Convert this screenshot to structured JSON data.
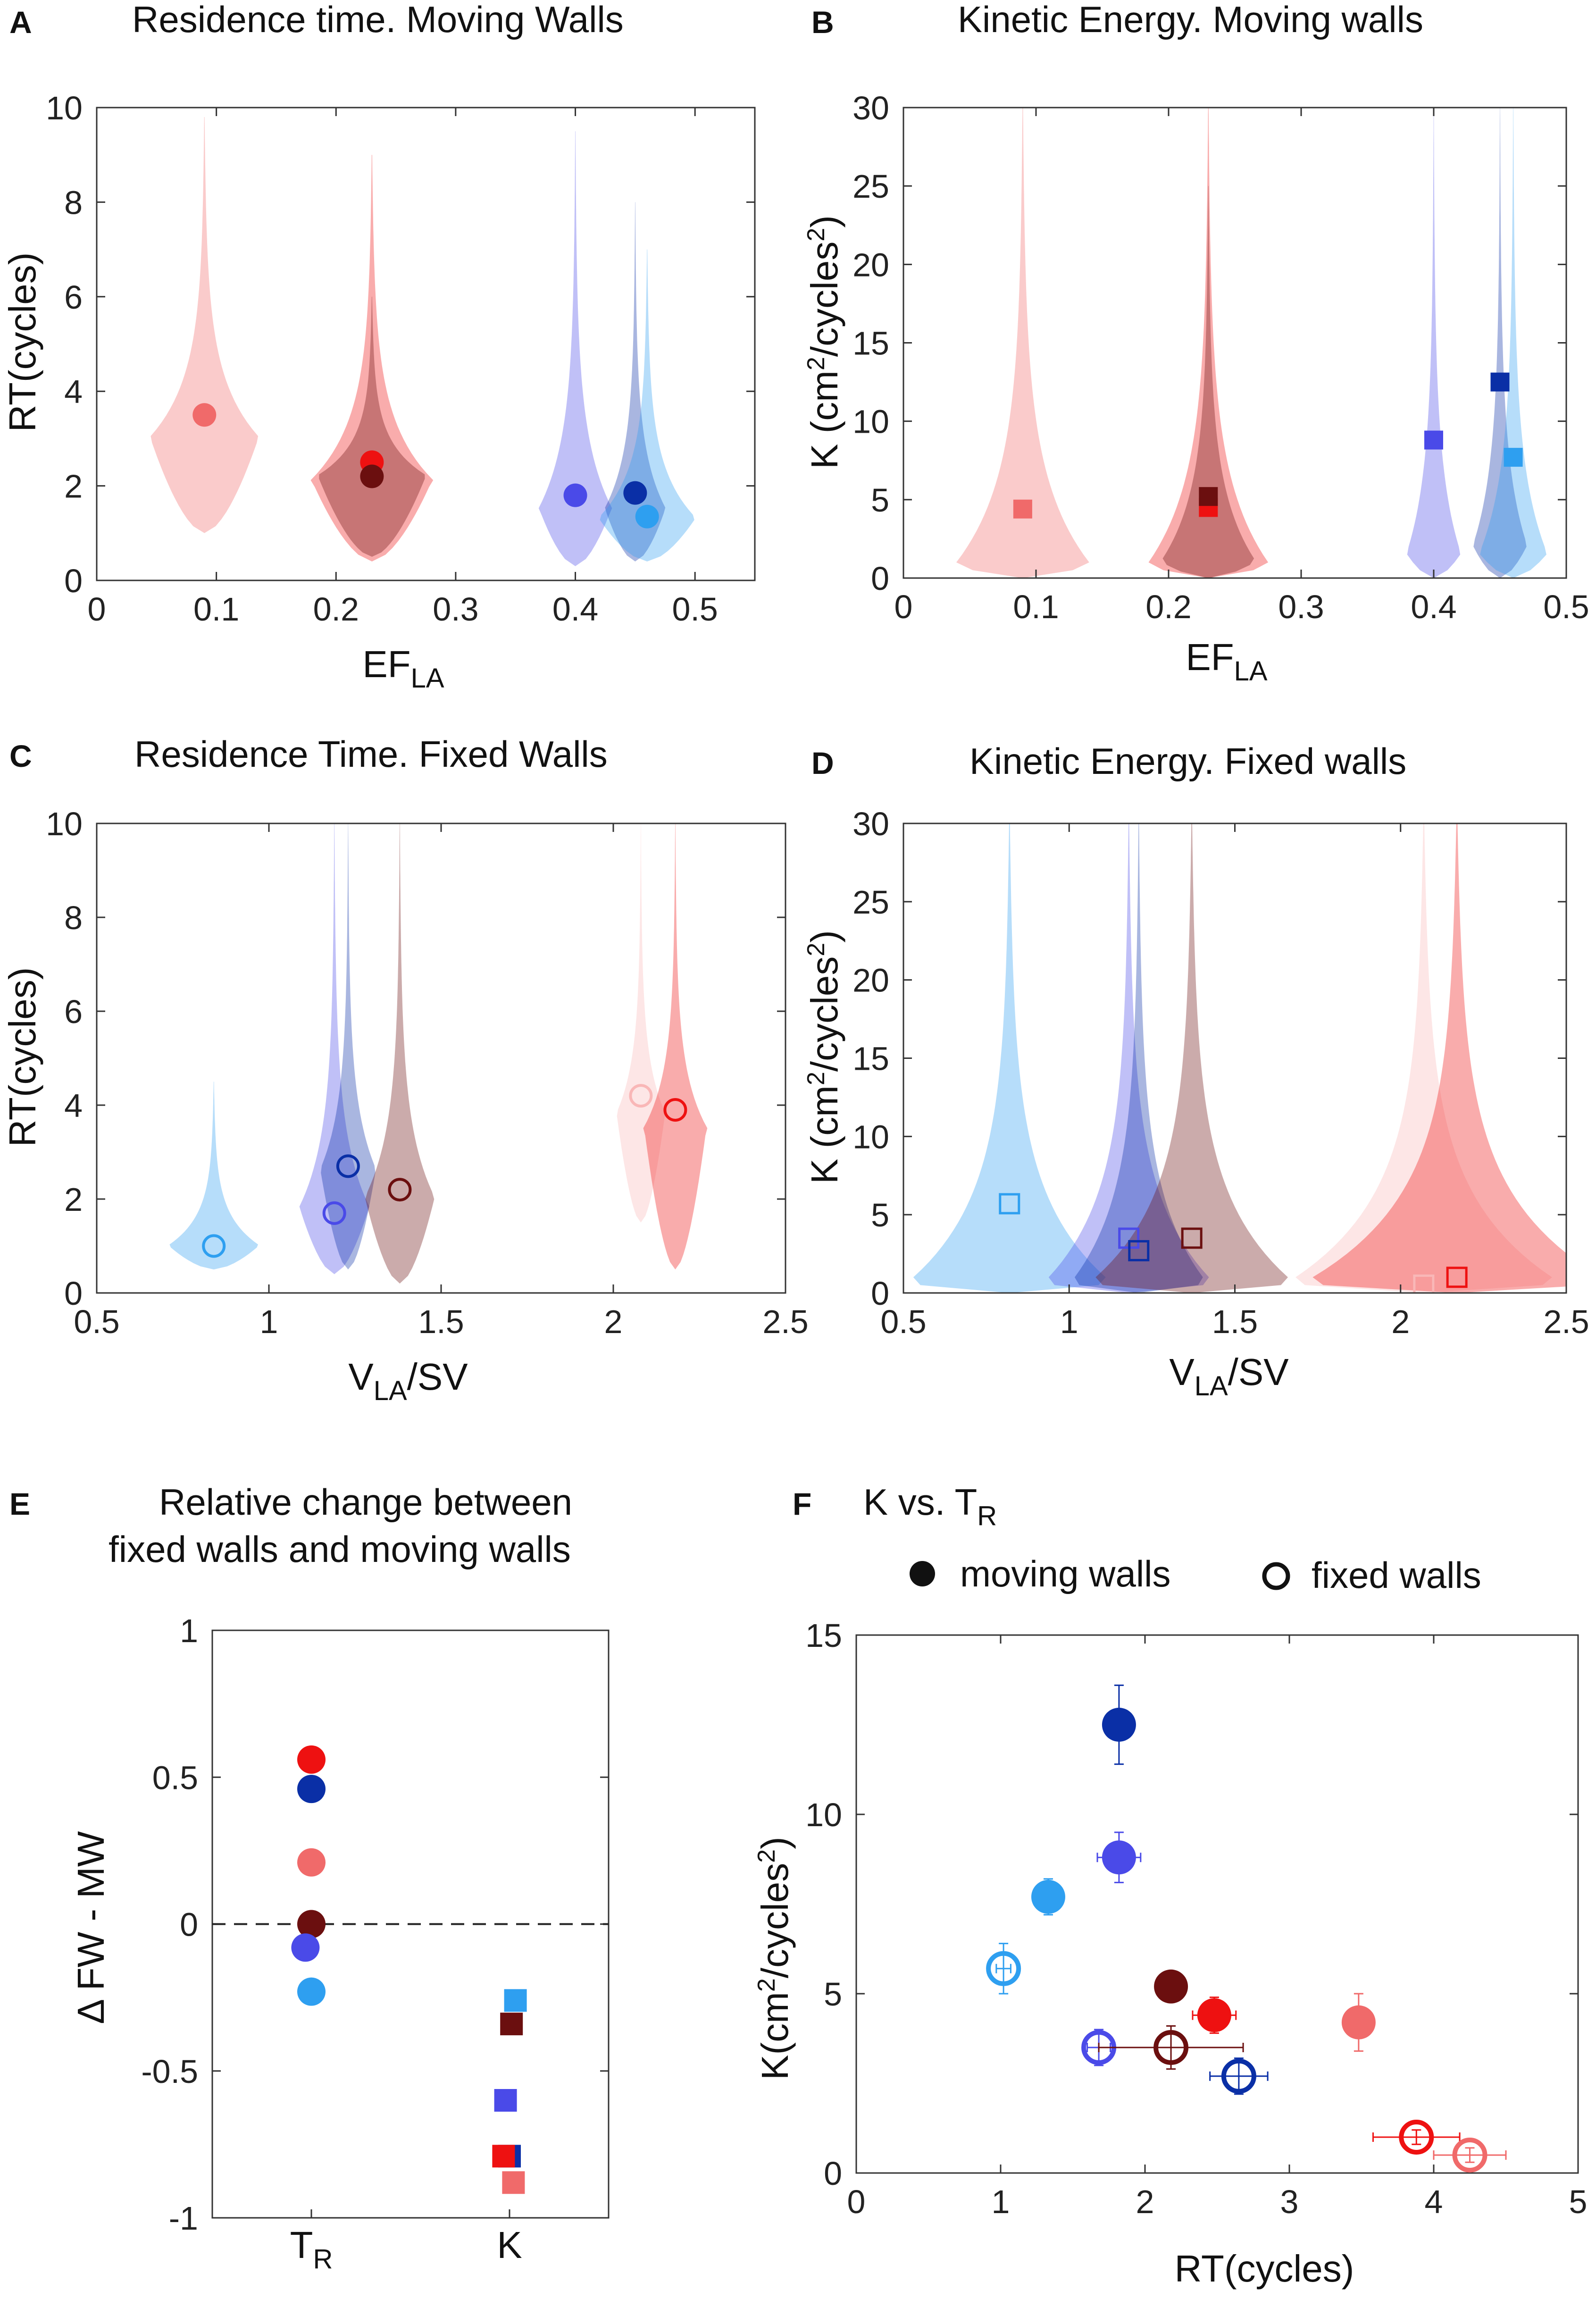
{
  "colors": {
    "light_red": "#f06a6a",
    "red": "#ee1111",
    "dark_red": "#6b0f0f",
    "light_blue": "#2e9ff0",
    "mid_blue": "#4a4ae8",
    "dark_blue": "#0a2fa6",
    "pale_red": "#f9b7b7"
  },
  "chart_data": [
    {
      "panel": "A",
      "type": "violin",
      "title": "Residence time. Moving Walls",
      "xlabel_main": "EF",
      "xlabel_sub": "LA",
      "ylabel": "RT(cycles)",
      "xlim": [
        0,
        0.55
      ],
      "ylim": [
        0,
        10
      ],
      "xticks": [
        "0",
        "0.1",
        "0.2",
        "0.3",
        "0.4",
        "0.5"
      ],
      "yticks": [
        "0",
        "2",
        "4",
        "6",
        "8",
        "10"
      ],
      "violins": [
        {
          "x": 0.09,
          "color": "#f06a6a",
          "peak": 3.0,
          "w": 0.045,
          "low": 1.0,
          "high": 9.8,
          "marker_y": 3.5
        },
        {
          "x": 0.23,
          "color": "#ee1111",
          "peak": 2.1,
          "w": 0.05,
          "low": 0.4,
          "high": 9.0,
          "marker_y": 2.5
        },
        {
          "x": 0.23,
          "color": "#6b0f0f",
          "peak": 2.2,
          "w": 0.045,
          "low": 0.5,
          "high": 6.0,
          "marker_y": 2.2
        },
        {
          "x": 0.4,
          "color": "#4a4ae8",
          "peak": 1.5,
          "w": 0.03,
          "low": 0.3,
          "high": 9.5,
          "marker_y": 1.8
        },
        {
          "x": 0.45,
          "color": "#0a2fa6",
          "peak": 1.5,
          "w": 0.025,
          "low": 0.4,
          "high": 8.0,
          "marker_y": 1.85
        },
        {
          "x": 0.46,
          "color": "#2e9ff0",
          "peak": 1.3,
          "w": 0.04,
          "low": 0.4,
          "high": 7.0,
          "marker_y": 1.35
        }
      ]
    },
    {
      "panel": "B",
      "type": "violin",
      "title": "Kinetic Energy. Moving walls",
      "xlabel_main": "EF",
      "xlabel_sub": "LA",
      "ylabel": "K (cm²/cycles²)",
      "xlim": [
        0,
        0.5
      ],
      "ylim": [
        0,
        30
      ],
      "xticks": [
        "0",
        "0.1",
        "0.2",
        "0.3",
        "0.4",
        "0.5"
      ],
      "yticks": [
        "0",
        "5",
        "10",
        "15",
        "20",
        "25",
        "30"
      ],
      "violins": [
        {
          "x": 0.09,
          "color": "#f06a6a",
          "peak": 0.8,
          "w": 0.05,
          "low": 0.0,
          "high": 30,
          "marker_y": 4.4
        },
        {
          "x": 0.23,
          "color": "#ee1111",
          "peak": 0.8,
          "w": 0.045,
          "low": 0.0,
          "high": 30,
          "marker_y": 4.5
        },
        {
          "x": 0.23,
          "color": "#6b0f0f",
          "peak": 1.0,
          "w": 0.035,
          "low": 0.0,
          "high": 25,
          "marker_y": 5.2
        },
        {
          "x": 0.4,
          "color": "#4a4ae8",
          "peak": 1.5,
          "w": 0.02,
          "low": 0.0,
          "high": 30,
          "marker_y": 8.8
        },
        {
          "x": 0.45,
          "color": "#0a2fa6",
          "peak": 2.0,
          "w": 0.02,
          "low": 0.0,
          "high": 30,
          "marker_y": 12.5
        },
        {
          "x": 0.46,
          "color": "#2e9ff0",
          "peak": 1.5,
          "w": 0.025,
          "low": 0.0,
          "high": 30,
          "marker_y": 7.7
        }
      ]
    },
    {
      "panel": "C",
      "type": "violin",
      "title": "Residence Time. Fixed Walls",
      "xlabel_main": "V",
      "xlabel_sub": "LA",
      "xlabel_tail": "/SV",
      "ylabel": "RT(cycles)",
      "xlim": [
        0.5,
        2.5
      ],
      "ylim": [
        0,
        10
      ],
      "xticks": [
        "0.5",
        "1",
        "1.5",
        "2",
        "2.5"
      ],
      "yticks": [
        "0",
        "2",
        "4",
        "6",
        "8",
        "10"
      ],
      "violins": [
        {
          "x": 0.84,
          "color": "#2e9ff0",
          "peak": 1.0,
          "w": 0.13,
          "low": 0.5,
          "high": 4.5,
          "marker_y": 1.0
        },
        {
          "x": 1.19,
          "color": "#4a4ae8",
          "peak": 1.8,
          "w": 0.1,
          "low": 0.4,
          "high": 10,
          "marker_y": 1.7
        },
        {
          "x": 1.23,
          "color": "#0a2fa6",
          "peak": 2.6,
          "w": 0.08,
          "low": 0.5,
          "high": 10,
          "marker_y": 2.7
        },
        {
          "x": 1.38,
          "color": "#6b0f0f",
          "peak": 2.0,
          "w": 0.1,
          "low": 0.2,
          "high": 10,
          "marker_y": 2.2
        },
        {
          "x": 2.08,
          "color": "#f9b7b7",
          "peak": 3.8,
          "w": 0.07,
          "low": 1.5,
          "high": 10,
          "marker_y": 4.2
        },
        {
          "x": 2.18,
          "color": "#ee1111",
          "peak": 3.5,
          "w": 0.09,
          "low": 0.5,
          "high": 10,
          "marker_y": 3.9
        }
      ]
    },
    {
      "panel": "D",
      "type": "violin",
      "title": "Kinetic Energy. Fixed walls",
      "xlabel_main": "V",
      "xlabel_sub": "LA",
      "xlabel_tail": "/SV",
      "ylabel": "K (cm²/cycles²)",
      "xlim": [
        0.5,
        2.5
      ],
      "ylim": [
        0,
        30
      ],
      "xticks": [
        "0.5",
        "1",
        "1.5",
        "2",
        "2.5"
      ],
      "yticks": [
        "0",
        "5",
        "10",
        "15",
        "20",
        "25",
        "30"
      ],
      "violins": [
        {
          "x": 0.82,
          "color": "#2e9ff0",
          "peak": 0.6,
          "w": 0.3,
          "low": 0.0,
          "high": 30,
          "marker_y": 5.7
        },
        {
          "x": 1.18,
          "color": "#4a4ae8",
          "peak": 0.6,
          "w": 0.25,
          "low": 0.0,
          "high": 30,
          "marker_y": 3.5
        },
        {
          "x": 1.21,
          "color": "#0a2fa6",
          "peak": 0.6,
          "w": 0.2,
          "low": 0.0,
          "high": 30,
          "marker_y": 2.7
        },
        {
          "x": 1.37,
          "color": "#6b0f0f",
          "peak": 0.6,
          "w": 0.3,
          "low": 0.0,
          "high": 30,
          "marker_y": 3.5
        },
        {
          "x": 2.07,
          "color": "#f9b7b7",
          "peak": 0.6,
          "w": 0.4,
          "low": 0.0,
          "high": 30,
          "marker_y": 0.5
        },
        {
          "x": 2.17,
          "color": "#ee1111",
          "peak": 0.6,
          "w": 0.45,
          "low": 0.0,
          "high": 30,
          "marker_y": 1.0
        }
      ]
    },
    {
      "panel": "E",
      "type": "scatter",
      "title_line1": "Relative change between",
      "title_line2": "fixed walls and moving walls",
      "ylabel": "Δ FW - MW",
      "xlim": [
        0.5,
        2.5
      ],
      "ylim": [
        -1,
        1
      ],
      "xticks": [
        "T",
        "K"
      ],
      "xtick_sub": "R",
      "yticks": [
        "-1",
        "-0.5",
        "0",
        "0.5",
        "1"
      ],
      "hline": 0,
      "points": [
        {
          "x": 1,
          "y": 0.56,
          "marker": "circle",
          "color": "#ee1111"
        },
        {
          "x": 1,
          "y": 0.46,
          "marker": "circle",
          "color": "#0a2fa6"
        },
        {
          "x": 1,
          "y": 0.21,
          "marker": "circle",
          "color": "#f06a6a"
        },
        {
          "x": 1,
          "y": 0.0,
          "marker": "circle",
          "color": "#6b0f0f"
        },
        {
          "x": 0.97,
          "y": -0.08,
          "marker": "circle",
          "color": "#4a4ae8"
        },
        {
          "x": 1,
          "y": -0.23,
          "marker": "circle",
          "color": "#2e9ff0"
        },
        {
          "x": 2.03,
          "y": -0.26,
          "marker": "square",
          "color": "#2e9ff0"
        },
        {
          "x": 2.01,
          "y": -0.34,
          "marker": "square",
          "color": "#6b0f0f"
        },
        {
          "x": 1.98,
          "y": -0.6,
          "marker": "square",
          "color": "#4a4ae8"
        },
        {
          "x": 2.0,
          "y": -0.79,
          "marker": "square",
          "color": "#0a2fa6"
        },
        {
          "x": 1.97,
          "y": -0.79,
          "marker": "square",
          "color": "#ee1111"
        },
        {
          "x": 2.02,
          "y": -0.88,
          "marker": "square",
          "color": "#f06a6a"
        }
      ]
    },
    {
      "panel": "F",
      "type": "scatter",
      "title": "K vs. T",
      "title_sub": "R",
      "legend_filled": "moving walls",
      "legend_open": "fixed walls",
      "xlabel": "RT(cycles)",
      "ylabel": "K(cm²/cycles²)",
      "xlim": [
        0,
        5
      ],
      "ylim": [
        0,
        15
      ],
      "xticks": [
        "0",
        "1",
        "2",
        "3",
        "4",
        "5"
      ],
      "yticks": [
        "0",
        "5",
        "10",
        "15"
      ],
      "points": [
        {
          "x": 1.82,
          "y": 12.5,
          "filled": true,
          "color": "#0a2fa6",
          "xerr": 0.05,
          "yerr": 1.1
        },
        {
          "x": 1.82,
          "y": 8.8,
          "filled": true,
          "color": "#4a4ae8",
          "xerr": 0.15,
          "yerr": 0.7
        },
        {
          "x": 1.33,
          "y": 7.7,
          "filled": true,
          "color": "#2e9ff0",
          "xerr": 0.05,
          "yerr": 0.5
        },
        {
          "x": 2.18,
          "y": 5.2,
          "filled": true,
          "color": "#6b0f0f",
          "xerr": 0.05,
          "yerr": 0.3
        },
        {
          "x": 2.48,
          "y": 4.4,
          "filled": true,
          "color": "#ee1111",
          "xerr": 0.15,
          "yerr": 0.5
        },
        {
          "x": 3.48,
          "y": 4.2,
          "filled": true,
          "color": "#f06a6a",
          "xerr": 0.1,
          "yerr": 0.8
        },
        {
          "x": 1.02,
          "y": 5.7,
          "filled": false,
          "color": "#2e9ff0",
          "xerr": 0.05,
          "yerr": 0.7
        },
        {
          "x": 1.68,
          "y": 3.5,
          "filled": false,
          "color": "#4a4ae8",
          "xerr": 0.08,
          "yerr": 0.5
        },
        {
          "x": 2.18,
          "y": 3.5,
          "filled": false,
          "color": "#6b0f0f",
          "xerr": 0.5,
          "yerr": 0.6
        },
        {
          "x": 2.65,
          "y": 2.7,
          "filled": false,
          "color": "#0a2fa6",
          "xerr": 0.2,
          "yerr": 0.5
        },
        {
          "x": 3.88,
          "y": 1.0,
          "filled": false,
          "color": "#ee1111",
          "xerr": 0.3,
          "yerr": 0.2
        },
        {
          "x": 4.25,
          "y": 0.5,
          "filled": false,
          "color": "#f06a6a",
          "xerr": 0.25,
          "yerr": 0.2
        }
      ]
    }
  ]
}
